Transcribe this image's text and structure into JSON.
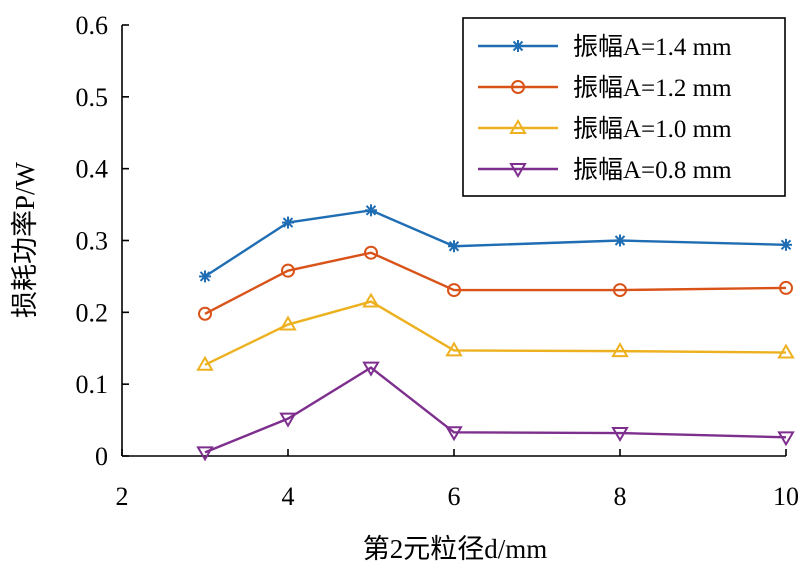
{
  "chart_data": {
    "type": "line",
    "xlabel": "第2元粒径d/mm",
    "ylabel": "损耗功率P/W",
    "xlim": [
      2,
      10
    ],
    "ylim": [
      0,
      0.6
    ],
    "x_ticks": [
      "2",
      "4",
      "6",
      "8",
      "10"
    ],
    "y_ticks": [
      "0",
      "0.1",
      "0.2",
      "0.3",
      "0.4",
      "0.5",
      "0.6"
    ],
    "x": [
      3,
      4,
      5,
      6,
      8,
      10
    ],
    "grid": false,
    "legend_position": "top-right",
    "series": [
      {
        "name": "振幅A=1.4 mm",
        "marker": "asterisk",
        "color": "#1f6db3",
        "values": [
          0.25,
          0.325,
          0.342,
          0.292,
          0.3,
          0.294
        ]
      },
      {
        "name": "振幅A=1.2 mm",
        "marker": "circle",
        "color": "#d95319",
        "values": [
          0.198,
          0.258,
          0.283,
          0.231,
          0.231,
          0.234
        ]
      },
      {
        "name": "振幅A=1.0 mm",
        "marker": "triangle-up",
        "color": "#edb120",
        "values": [
          0.127,
          0.183,
          0.215,
          0.147,
          0.146,
          0.144
        ]
      },
      {
        "name": "振幅A=0.8 mm",
        "marker": "triangle-down",
        "color": "#7e2f8e",
        "values": [
          0.005,
          0.052,
          0.123,
          0.033,
          0.032,
          0.026
        ]
      }
    ]
  }
}
